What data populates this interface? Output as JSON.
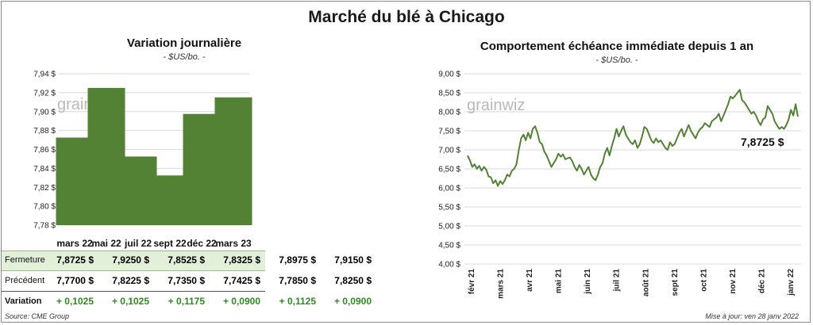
{
  "header": {
    "title": "Marché du blé à Chicago"
  },
  "left_chart": {
    "title": "Variation  journalière",
    "unit": "- $US/bo. -"
  },
  "right_chart": {
    "title": "Comportement  échéance immédiate depuis 1 an",
    "unit": "- $US/bo. -",
    "last_price_label": "7,8725 $"
  },
  "watermark": "grainwiz",
  "table": {
    "rows": [
      {
        "label": "Fermeture",
        "values": [
          "7,8725  $",
          "7,9250  $",
          "7,8525  $",
          "7,8325  $",
          "7,8975  $",
          "7,9150  $"
        ]
      },
      {
        "label": "Précédent",
        "values": [
          "7,7700  $",
          "7,8225  $",
          "7,7350  $",
          "7,7425  $",
          "7,7850  $",
          "7,8250  $"
        ]
      },
      {
        "label": "Variation",
        "values": [
          "+ 0,1025",
          "+ 0,1025",
          "+ 0,1175",
          "+ 0,0900",
          "+ 0,1125",
          "+ 0,0900"
        ]
      }
    ]
  },
  "footer": {
    "source": "Source: CME Group",
    "update": "Mise à jour: ven 28 janv 2022"
  },
  "colors": {
    "bar": "#548235",
    "line": "#548235",
    "grid": "#d9d9d9"
  },
  "chart_data": [
    {
      "type": "bar",
      "title": "Variation  journalière",
      "subtitle": "- $US/bo. -",
      "categories": [
        "mars 22",
        "mai 22",
        "juil 22",
        "sept 22",
        "déc 22",
        "mars 23"
      ],
      "values": [
        7.8725,
        7.925,
        7.8525,
        7.8325,
        7.8975,
        7.915
      ],
      "ylim": [
        7.78,
        7.94
      ],
      "yticks": [
        7.78,
        7.8,
        7.82,
        7.84,
        7.86,
        7.88,
        7.9,
        7.92,
        7.94
      ],
      "ytick_labels": [
        "7,78 $",
        "7,80 $",
        "7,82 $",
        "7,84 $",
        "7,86 $",
        "7,88 $",
        "7,90 $",
        "7,92 $",
        "7,94 $"
      ],
      "grid": true
    },
    {
      "type": "line",
      "title": "Comportement  échéance immédiate depuis 1 an",
      "subtitle": "- $US/bo. -",
      "ylim": [
        4.0,
        9.0
      ],
      "yticks": [
        4.0,
        4.5,
        5.0,
        5.5,
        6.0,
        6.5,
        7.0,
        7.5,
        8.0,
        8.5,
        9.0
      ],
      "ytick_labels": [
        "4,00 $",
        "4,50 $",
        "5,00 $",
        "5,50 $",
        "6,00 $",
        "6,50 $",
        "7,00 $",
        "7,50 $",
        "8,00 $",
        "8,50 $",
        "9,00 $"
      ],
      "xticks": [
        "févr 21",
        "mars 21",
        "avr 21",
        "mai 21",
        "juin 21",
        "juil 21",
        "août 21",
        "sept 21",
        "oct 21",
        "nov 21",
        "déc 21",
        "janv 22"
      ],
      "grid": true,
      "series": [
        {
          "values": [
            6.85,
            6.72,
            6.55,
            6.62,
            6.5,
            6.58,
            6.45,
            6.55,
            6.48,
            6.3,
            6.28,
            6.12,
            6.2,
            6.05,
            6.18,
            6.1,
            6.2,
            6.35,
            6.3,
            6.45,
            6.5,
            6.62,
            7.0,
            7.3,
            7.4,
            7.25,
            7.45,
            7.3,
            7.55,
            7.62,
            7.45,
            7.2,
            7.15,
            6.95,
            6.85,
            6.7,
            6.55,
            6.65,
            6.75,
            6.9,
            6.82,
            6.88,
            6.75,
            6.78,
            6.8,
            6.7,
            6.55,
            6.45,
            6.6,
            6.5,
            6.35,
            6.45,
            6.55,
            6.35,
            6.25,
            6.2,
            6.35,
            6.55,
            6.65,
            6.9,
            7.05,
            6.85,
            7.1,
            7.3,
            7.55,
            7.35,
            7.5,
            7.62,
            7.4,
            7.3,
            7.2,
            7.15,
            7.25,
            7.05,
            7.15,
            7.35,
            7.6,
            7.55,
            7.4,
            7.25,
            7.18,
            7.3,
            7.2,
            7.25,
            7.15,
            7.05,
            7.0,
            7.2,
            7.1,
            7.15,
            7.3,
            7.45,
            7.55,
            7.35,
            7.5,
            7.65,
            7.5,
            7.4,
            7.3,
            7.45,
            7.55,
            7.6,
            7.7,
            7.65,
            7.6,
            7.75,
            7.8,
            7.85,
            7.95,
            7.75,
            7.9,
            8.05,
            8.2,
            8.4,
            8.35,
            8.42,
            8.5,
            8.58,
            8.3,
            8.25,
            8.15,
            8.05,
            7.95,
            8.0,
            7.9,
            7.75,
            7.65,
            7.8,
            7.85,
            8.15,
            8.05,
            7.95,
            7.75,
            7.65,
            7.55,
            7.6,
            7.55,
            7.65,
            7.8,
            8.05,
            7.9,
            8.2,
            7.8725
          ]
        }
      ]
    }
  ]
}
